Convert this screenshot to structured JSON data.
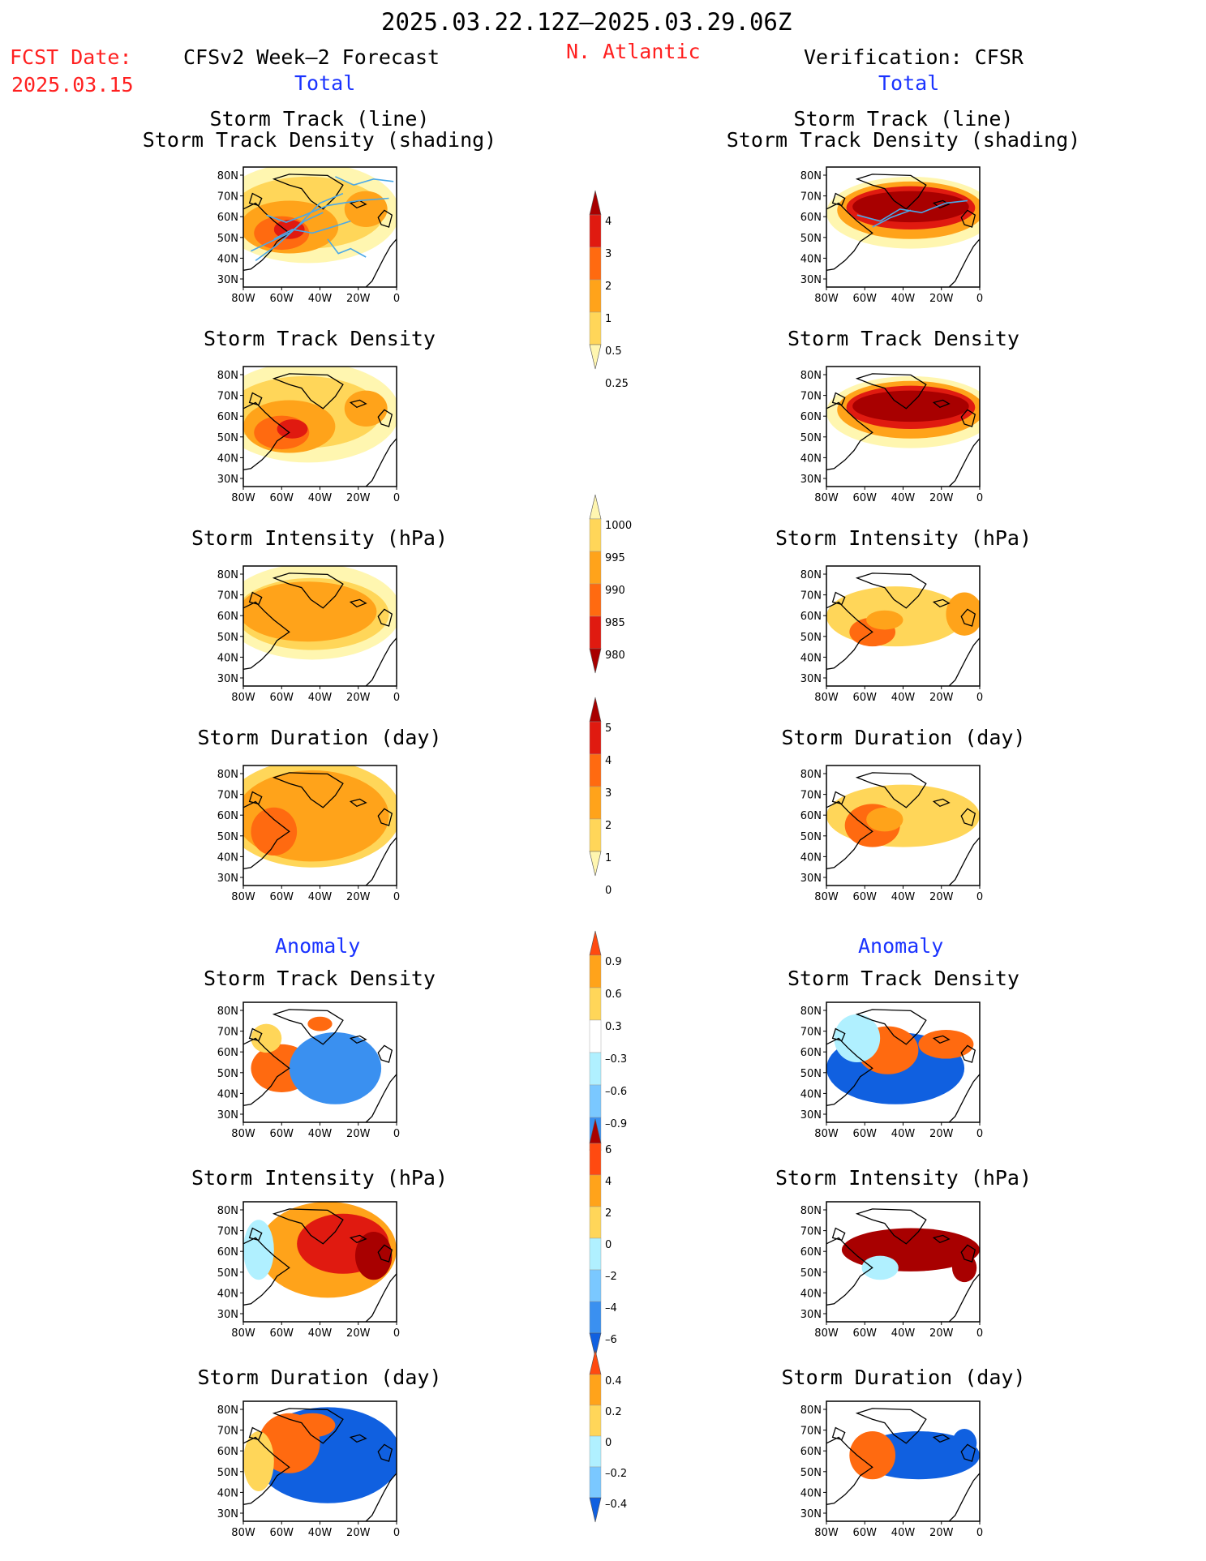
{
  "header": {
    "title": "2025.03.22.12Z–2025.03.29.06Z",
    "fcst_label": "FCST Date:",
    "fcst_date": "2025.03.15",
    "left_model": "CFSv2 Week–2 Forecast",
    "region": "N. Atlantic",
    "right_model": "Verification: CFSR",
    "left_section": "Total",
    "right_section": "Total",
    "anomaly_left": "Anomaly",
    "anomaly_right": "Anomaly"
  },
  "axes": {
    "x_ticks": [
      "80W",
      "60W",
      "40W",
      "20W",
      "0"
    ],
    "y_ticks": [
      "80N",
      "70N",
      "60N",
      "50N",
      "40N",
      "30N"
    ]
  },
  "panel_titles": {
    "track": [
      "Storm Track (line)",
      "Storm Track Density (shading)"
    ],
    "density": "Storm Track Density",
    "intensity": "Storm Intensity (hPa)",
    "duration": "Storm Duration (day)"
  },
  "colors": {
    "c1": "#fff6b0",
    "c2": "#ffd659",
    "c3": "#ffa31a",
    "c4": "#ff6a10",
    "c5": "#e01a10",
    "c6": "#a80000",
    "b1": "#b0f0ff",
    "b2": "#7ac8ff",
    "b3": "#3a90f0",
    "b4": "#1060e0",
    "track_line": "#4aa8e8",
    "coast": "#000000"
  },
  "chart_data": [
    {
      "type": "heatmap",
      "id": "colorbar-density",
      "levels": [
        "0.25",
        "0.5",
        "1",
        "2",
        "3",
        "4"
      ],
      "colors": [
        "#fff6b0",
        "#ffd659",
        "#ffa31a",
        "#ff6a10",
        "#e01a10",
        "#a80000"
      ]
    },
    {
      "type": "heatmap",
      "id": "colorbar-intensity",
      "levels": [
        "1000",
        "995",
        "990",
        "985",
        "980"
      ],
      "colors": [
        "#fff6b0",
        "#ffd659",
        "#ffa31a",
        "#ff6a10",
        "#e01a10",
        "#a80000"
      ]
    },
    {
      "type": "heatmap",
      "id": "colorbar-duration",
      "levels": [
        "0",
        "1",
        "2",
        "3",
        "4",
        "5"
      ],
      "colors": [
        "#fff6b0",
        "#ffd659",
        "#ffa31a",
        "#ff6a10",
        "#e01a10",
        "#a80000"
      ]
    },
    {
      "type": "heatmap",
      "id": "colorbar-density-anom",
      "levels": [
        "0.9",
        "0.6",
        "0.3",
        "–0.3",
        "–0.6",
        "–0.9"
      ],
      "colors": [
        "#ff4a10",
        "#ffa31a",
        "#ffd659",
        "#ffffff",
        "#b0f0ff",
        "#7ac8ff",
        "#3a90f0",
        "#1060e0"
      ]
    },
    {
      "type": "heatmap",
      "id": "colorbar-intensity-anom",
      "levels": [
        "6",
        "4",
        "2",
        "0",
        "–2",
        "–4",
        "–6"
      ],
      "colors": [
        "#a80000",
        "#ff4a10",
        "#ffa31a",
        "#ffd659",
        "#b0f0ff",
        "#7ac8ff",
        "#3a90f0",
        "#1060e0"
      ]
    },
    {
      "type": "heatmap",
      "id": "colorbar-duration-anom",
      "levels": [
        "0.4",
        "0.2",
        "0",
        "–0.2",
        "–0.4"
      ],
      "colors": [
        "#ff4a10",
        "#ffa31a",
        "#ffd659",
        "#b0f0ff",
        "#7ac8ff",
        "#1060e0"
      ]
    }
  ]
}
